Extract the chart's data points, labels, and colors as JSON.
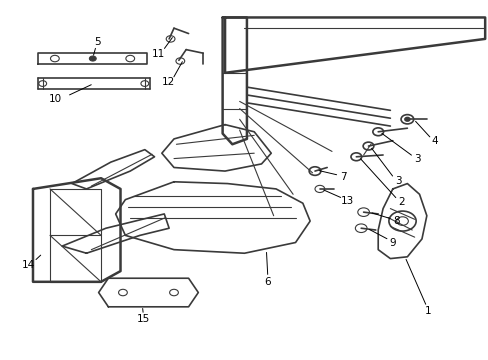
{
  "bg_color": "#ffffff",
  "line_color": "#3a3a3a",
  "text_color": "#000000",
  "fig_width": 4.89,
  "fig_height": 3.6,
  "dpi": 100,
  "font_size": 7.5,
  "lw_thick": 1.8,
  "lw_med": 1.2,
  "lw_thin": 0.8
}
